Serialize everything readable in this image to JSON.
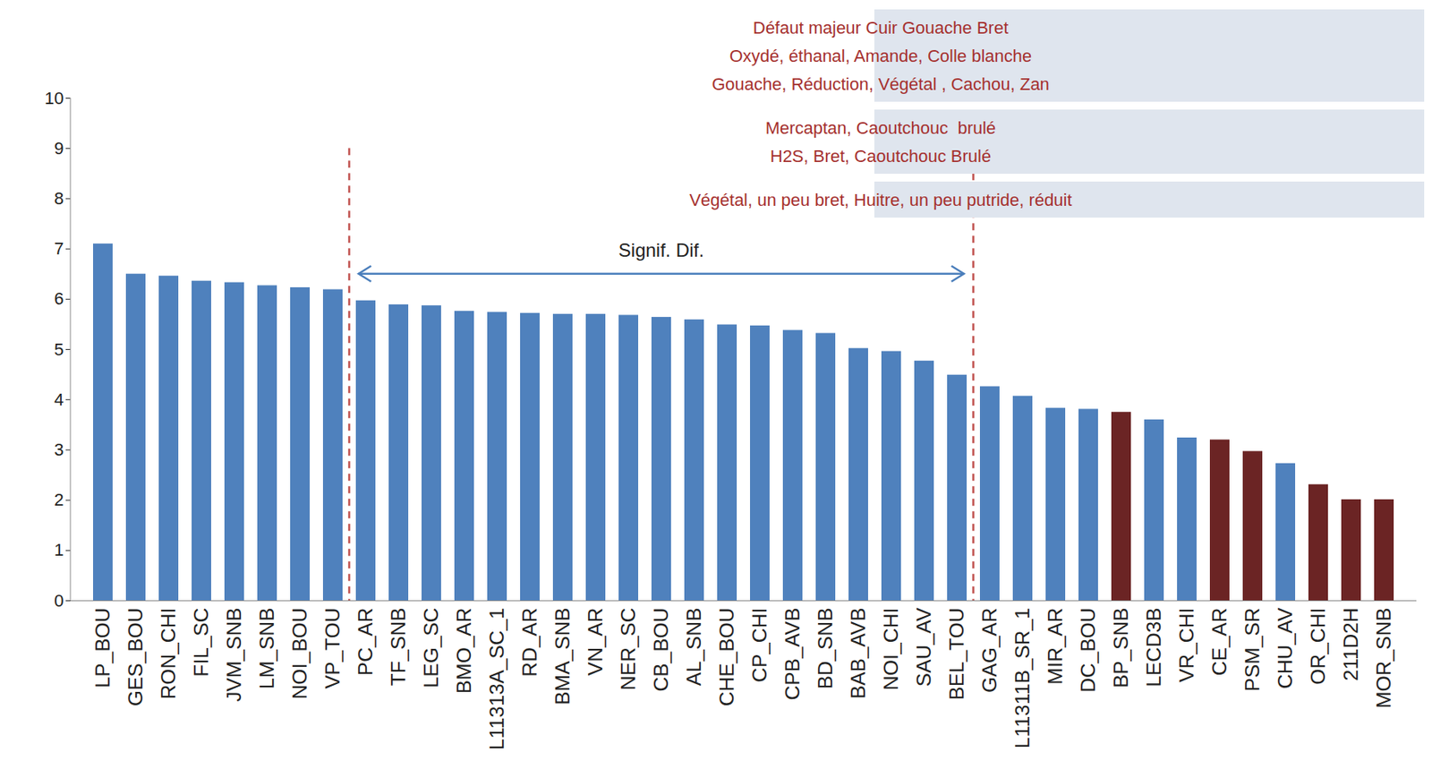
{
  "chart_data": {
    "type": "bar",
    "categories": [
      "LP_BOU",
      "GES_BOU",
      "RON_CHI",
      "FIL_SC",
      "JVM_SNB",
      "LM_SNB",
      "NOI_BOU",
      "VP_TOU",
      "PC_AR",
      "TF_SNB",
      "LEG_SC",
      "BMO_AR",
      "L11313A_SC_1",
      "RD_AR",
      "BMA_SNB",
      "VN_AR",
      "NER_SC",
      "CB_BOU",
      "AL_SNB",
      "CHE_BOU",
      "CP_CHI",
      "CPB_AVB",
      "BD_SNB",
      "BAB_AVB",
      "NOI_CHI",
      "SAU_AV",
      "BEL_TOU",
      "GAG_AR",
      "L11311B_SR_1",
      "MIR_AR",
      "DC_BOU",
      "BP_SNB",
      "LECD3B",
      "VR_CHI",
      "CE_AR",
      "PSM_SR",
      "CHU_AV",
      "OR_CHI",
      "211D2H",
      "MOR_SNB"
    ],
    "values": [
      7.1,
      6.5,
      6.46,
      6.36,
      6.33,
      6.27,
      6.23,
      6.19,
      5.97,
      5.89,
      5.87,
      5.76,
      5.74,
      5.72,
      5.7,
      5.7,
      5.68,
      5.64,
      5.59,
      5.49,
      5.47,
      5.38,
      5.32,
      5.02,
      4.96,
      4.77,
      4.49,
      4.26,
      4.07,
      3.83,
      3.81,
      3.75,
      3.6,
      3.24,
      3.2,
      2.97,
      2.73,
      2.31,
      2.01,
      2.01
    ],
    "colors": [
      "#4f81bd",
      "#4f81bd",
      "#4f81bd",
      "#4f81bd",
      "#4f81bd",
      "#4f81bd",
      "#4f81bd",
      "#4f81bd",
      "#4f81bd",
      "#4f81bd",
      "#4f81bd",
      "#4f81bd",
      "#4f81bd",
      "#4f81bd",
      "#4f81bd",
      "#4f81bd",
      "#4f81bd",
      "#4f81bd",
      "#4f81bd",
      "#4f81bd",
      "#4f81bd",
      "#4f81bd",
      "#4f81bd",
      "#4f81bd",
      "#4f81bd",
      "#4f81bd",
      "#4f81bd",
      "#4f81bd",
      "#4f81bd",
      "#4f81bd",
      "#4f81bd",
      "#6b2424",
      "#4f81bd",
      "#4f81bd",
      "#6b2424",
      "#6b2424",
      "#4f81bd",
      "#6b2424",
      "#6b2424",
      "#6b2424"
    ],
    "ylim": [
      0,
      10
    ],
    "yticks": [
      0,
      1,
      2,
      3,
      4,
      5,
      6,
      7,
      8,
      9,
      10
    ],
    "grid": false,
    "annotations": {
      "significance": {
        "label": "Signif. Dif.",
        "from": "PC_AR",
        "to": "BEL_TOU",
        "line_top": 9,
        "arrow_y": 6.5
      },
      "notes": [
        [
          "Défaut majeur Cuir Gouache Bret",
          "Oxydé, éthanal, Amande, Colle blanche",
          "Gouache, Réduction, Végétal , Cachou, Zan"
        ],
        [
          "Mercaptan, Caoutchouc  brulé",
          "H2S, Bret, Caoutchouc Brulé"
        ],
        [
          "Végétal, un peu bret, Huitre, un peu putride, réduit"
        ]
      ]
    }
  }
}
